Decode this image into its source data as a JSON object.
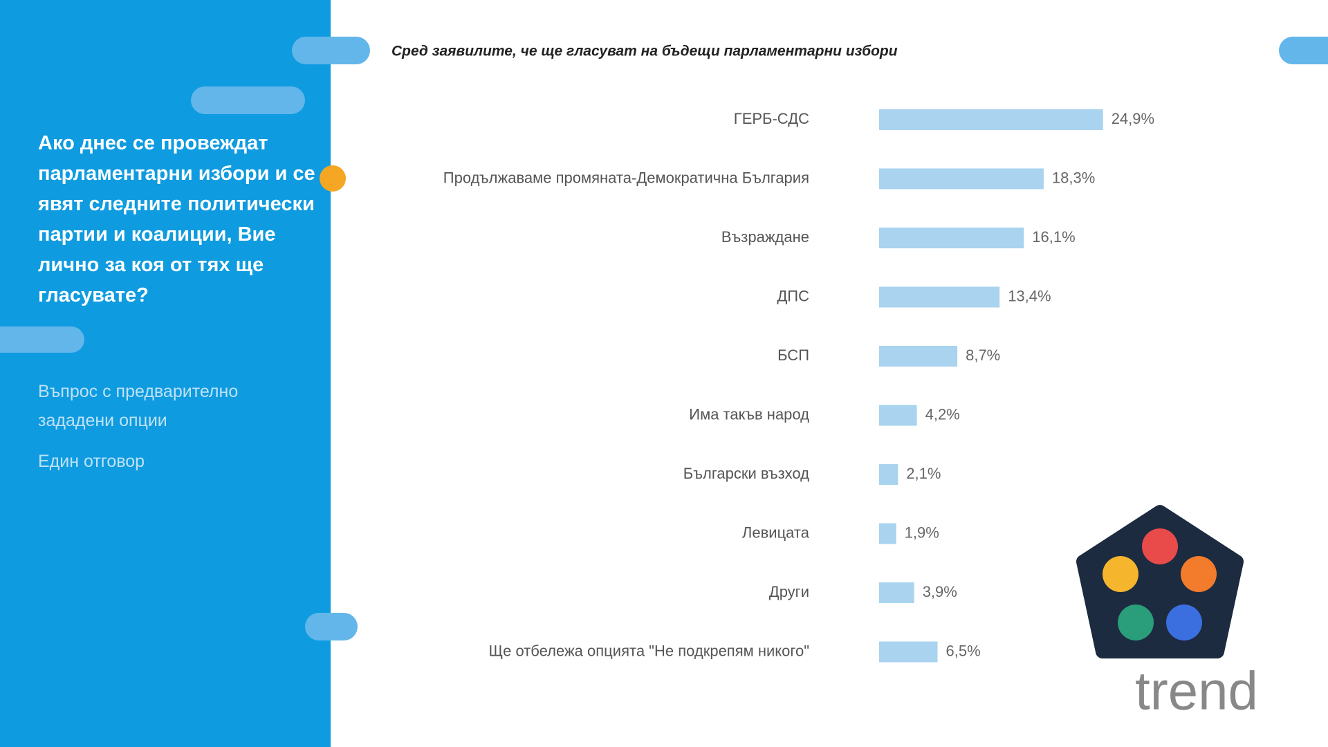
{
  "chart_data": {
    "type": "barh",
    "title": "Сред заявилите, че ще гласуват на бъдещи парламентарни избори",
    "question": "Ако днес се провеждат парламентарни избори и се явят следните политически партии и коалиции, Вие лично за коя от тях ще гласувате?",
    "note": "Въпрос с предварително зададени опции",
    "answer_type": "Един отговор",
    "brand": "trend",
    "categories": [
      "ГЕРБ-СДС",
      "Продължаваме промяната-Демократична България",
      "Възраждане",
      "ДПС",
      "БСП",
      "Има такъв народ",
      "Български възход",
      "Левицата",
      "Други",
      "Ще отбележа опцията \"Не подкрепям никого\""
    ],
    "values": [
      24.9,
      18.3,
      16.1,
      13.4,
      8.7,
      4.2,
      2.1,
      1.9,
      3.9,
      6.5
    ],
    "value_labels": [
      "24,9%",
      "18,3%",
      "16,1%",
      "13,4%",
      "8,7%",
      "4,2%",
      "2,1%",
      "1,9%",
      "3,9%",
      "6,5%"
    ],
    "color": "#a9d3ef"
  }
}
